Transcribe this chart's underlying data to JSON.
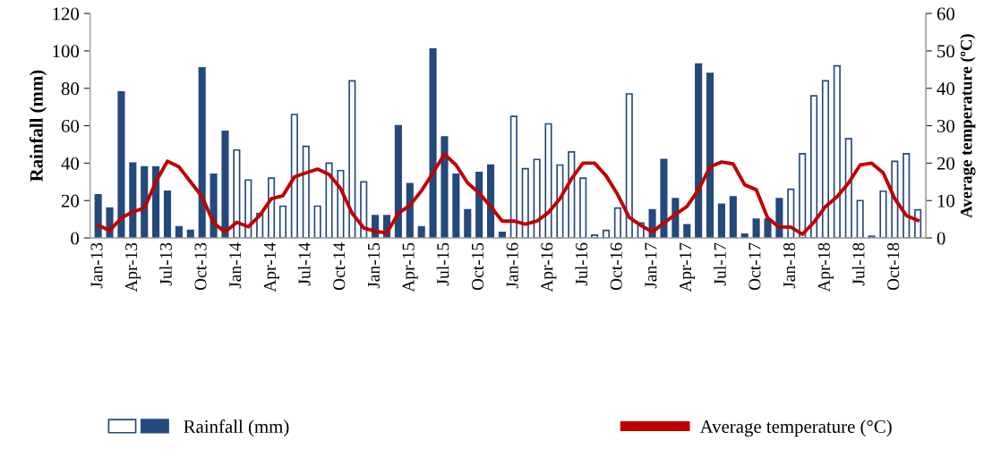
{
  "chart_data": {
    "type": "bar",
    "ylabel": "Rainfall (mm)",
    "y2label": "Average temperature (ºC)",
    "categories": [
      "Jan-13",
      null,
      null,
      "Apr-13",
      null,
      null,
      "Jul-13",
      null,
      null,
      "Oct-13",
      null,
      null,
      "Jan-14",
      null,
      null,
      "Apr-14",
      null,
      null,
      "Jul-14",
      null,
      null,
      "Oct-14",
      null,
      null,
      "Jan-15",
      null,
      null,
      "Apr-15",
      null,
      null,
      "Jul-15",
      null,
      null,
      "Oct-15",
      null,
      null,
      "Jan-16",
      null,
      null,
      "Apr-16",
      null,
      null,
      "Jul-16",
      null,
      null,
      "Oct-16",
      null,
      null,
      "Jan-17",
      null,
      null,
      "Apr-17",
      null,
      null,
      "Jul-17",
      null,
      null,
      "Oct-17",
      null,
      null,
      "Jan-18",
      null,
      null,
      "Apr-18",
      null,
      null,
      "Jul-18",
      null,
      null,
      "Oct-18",
      null,
      null
    ],
    "series": [
      {
        "color": "#ffffff",
        "values": [
          null,
          null,
          null,
          null,
          null,
          null,
          null,
          null,
          null,
          null,
          null,
          null,
          47,
          31,
          13,
          32,
          17,
          66,
          49,
          17,
          40,
          36,
          84,
          30,
          null,
          null,
          null,
          null,
          null,
          null,
          null,
          null,
          null,
          null,
          null,
          null,
          65,
          37,
          42,
          61,
          39,
          46,
          32,
          1.5,
          4,
          16,
          77,
          8,
          null,
          null,
          null,
          null,
          null,
          null,
          null,
          null,
          null,
          null,
          null,
          null,
          26,
          45,
          76,
          84,
          92,
          53,
          20,
          1,
          25,
          41,
          45,
          15
        ]
      },
      {
        "name": "Rainfall (mm)",
        "color": "#24497d",
        "values": [
          23,
          16,
          78,
          40,
          38,
          38,
          25,
          6,
          4,
          91,
          34,
          57,
          null,
          null,
          null,
          null,
          null,
          null,
          null,
          null,
          null,
          null,
          null,
          null,
          12,
          12,
          60,
          29,
          6,
          101,
          54,
          34,
          15,
          35,
          39,
          3,
          null,
          null,
          null,
          null,
          null,
          null,
          null,
          null,
          null,
          null,
          null,
          null,
          15,
          42,
          21,
          7,
          93,
          88,
          18,
          22,
          2,
          10,
          10,
          21,
          null,
          null,
          null,
          null,
          null,
          null,
          null,
          null,
          null,
          null,
          null,
          null
        ]
      },
      {
        "type": "line",
        "name": "Average temperature (°C)",
        "color": "#c00000",
        "axis": "y2",
        "values": [
          3.4,
          2,
          5.3,
          7,
          8,
          15,
          20.5,
          19,
          15,
          11,
          4,
          1.6,
          4.2,
          3,
          6,
          10.5,
          11.3,
          16.3,
          17.4,
          18.4,
          17,
          13.2,
          6.6,
          2.7,
          1.8,
          1.3,
          6.6,
          8.7,
          12.6,
          17.4,
          22.4,
          19.5,
          14.7,
          12,
          8.4,
          4.5,
          4.5,
          3.7,
          4.5,
          6.8,
          10.5,
          15.8,
          20,
          20,
          16.6,
          11.6,
          5.5,
          3.4,
          1.6,
          4,
          6.3,
          8.4,
          12.9,
          19,
          20.3,
          19.8,
          14.2,
          12.9,
          5.3,
          2.9,
          2.9,
          1,
          4.2,
          8.4,
          11,
          14.7,
          19.5,
          20,
          17.4,
          10.5,
          6,
          4.7
        ]
      }
    ],
    "ylim": [
      0,
      120
    ],
    "yticks": [
      0,
      20,
      40,
      60,
      80,
      100,
      120
    ],
    "y2lim": [
      0,
      60
    ],
    "y2ticks": [
      0,
      10,
      20,
      30,
      40,
      50,
      60
    ],
    "grid": false,
    "legend": "bottom",
    "marker": "none",
    "line_style": "solid"
  }
}
